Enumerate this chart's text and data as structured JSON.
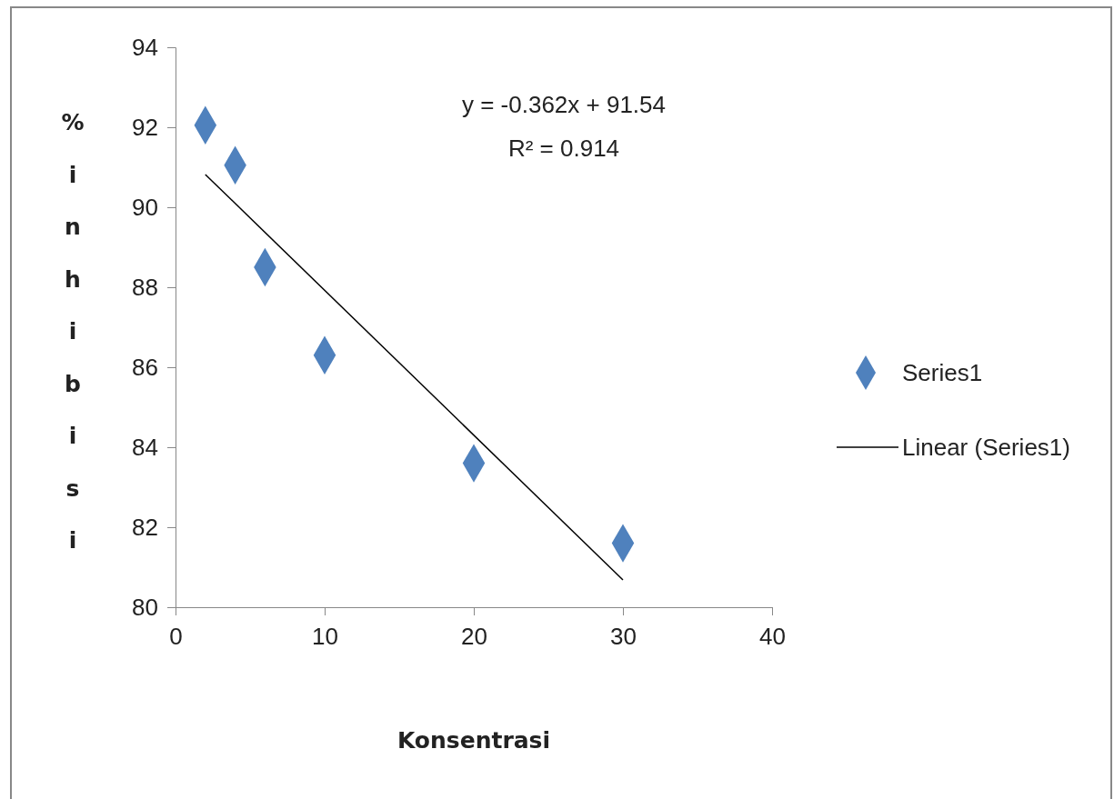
{
  "chart_data": {
    "type": "scatter",
    "xlabel": "Konsentrasi",
    "ylabel": "% inhibisi",
    "xlim": [
      0,
      40
    ],
    "xticks": [
      0,
      10,
      20,
      30,
      40
    ],
    "ylim": [
      80,
      94
    ],
    "yticks": [
      80,
      82,
      84,
      86,
      88,
      90,
      92,
      94
    ],
    "grid": false,
    "legend": "right",
    "annotations": [
      "y = -0.362x + 91.54",
      "R² = 0.914"
    ],
    "series": [
      {
        "name": "Series1",
        "marker": "diamond",
        "color": "#4f81bd",
        "x": [
          2,
          4,
          6,
          10,
          20,
          30
        ],
        "values": [
          92.05,
          91.05,
          88.5,
          86.3,
          83.6,
          81.6
        ]
      },
      {
        "name": "Linear (Series1)",
        "type": "line",
        "marker": "none",
        "color": "#000000",
        "line_style": "solid",
        "x": [
          2,
          30
        ],
        "values": [
          90.82,
          80.68
        ]
      }
    ]
  }
}
